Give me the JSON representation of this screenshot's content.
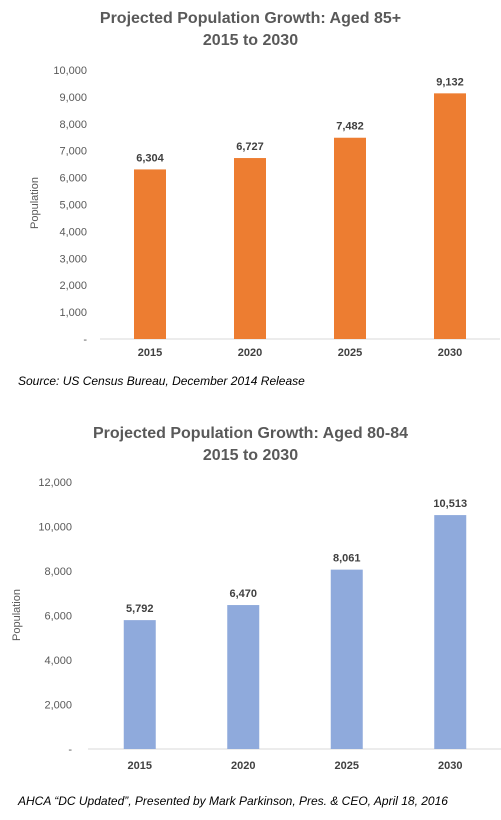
{
  "chart_data": [
    {
      "type": "bar",
      "title": "Projected Population Growth:  Aged 85+",
      "subtitle": "2015 to 2030",
      "ylabel": "Population",
      "xlabel": "",
      "categories": [
        "2015",
        "2020",
        "2025",
        "2030"
      ],
      "values": [
        6304,
        6727,
        7482,
        9132
      ],
      "data_labels": [
        "6,304",
        "6,727",
        "7,482",
        "9,132"
      ],
      "ylim": [
        0,
        10000
      ],
      "yticks": [
        0,
        1000,
        2000,
        3000,
        4000,
        5000,
        6000,
        7000,
        8000,
        9000,
        10000
      ],
      "ytick_labels": [
        "-",
        "1,000",
        "2,000",
        "3,000",
        "4,000",
        "5,000",
        "6,000",
        "7,000",
        "8,000",
        "9,000",
        "10,000"
      ],
      "bar_color": "#ED7D31",
      "grid": false,
      "legend": "none",
      "source": "Source: US Census Bureau, December 2014 Release"
    },
    {
      "type": "bar",
      "title": "Projected Population Growth:  Aged 80-84",
      "subtitle": "2015 to 2030",
      "ylabel": "Population",
      "xlabel": "",
      "categories": [
        "2015",
        "2020",
        "2025",
        "2030"
      ],
      "values": [
        5792,
        6470,
        8061,
        10513
      ],
      "data_labels": [
        "5,792",
        "6,470",
        "8,061",
        "10,513"
      ],
      "ylim": [
        0,
        12000
      ],
      "yticks": [
        0,
        2000,
        4000,
        6000,
        8000,
        10000,
        12000
      ],
      "ytick_labels": [
        "-",
        "2,000",
        "4,000",
        "6,000",
        "8,000",
        "10,000",
        "12,000"
      ],
      "bar_color": "#8FAADC",
      "grid": false,
      "legend": "none",
      "source": "AHCA “DC Updated”, Presented by Mark Parkinson, Pres. & CEO, April 18, 2016"
    }
  ]
}
